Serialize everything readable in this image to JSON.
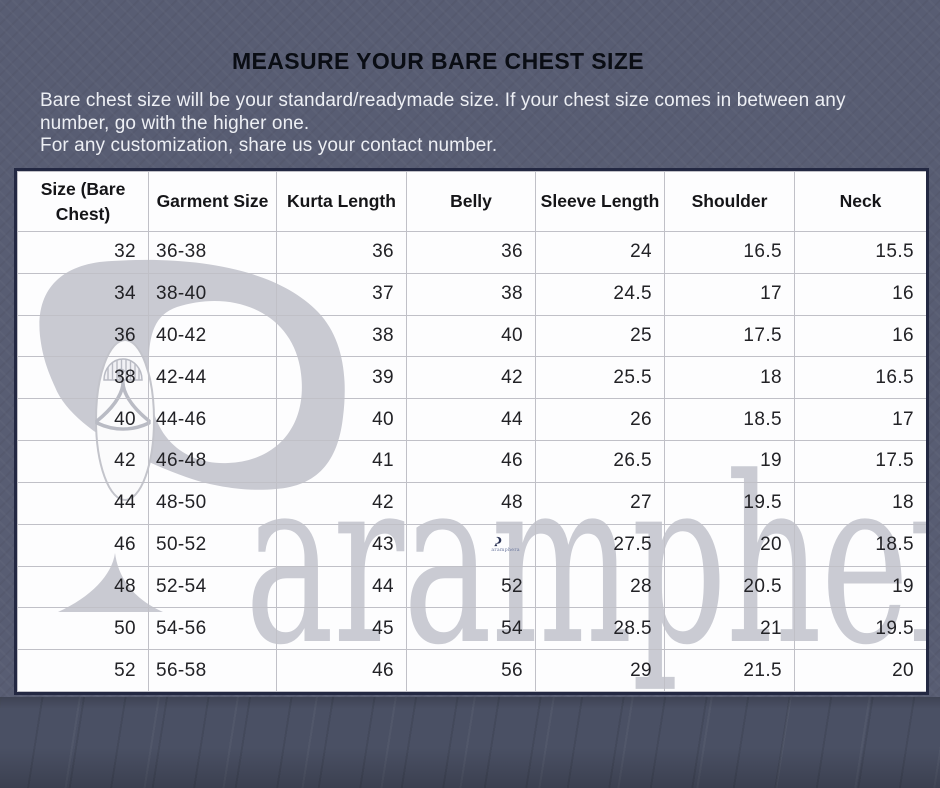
{
  "header": {
    "title": "MEASURE YOUR BARE CHEST SIZE",
    "intro_lines": [
      "Bare chest size will be your standard/readymade size. If your chest size comes in between any",
      "number, go with the higher one.",
      "For any customization, share us your contact number."
    ]
  },
  "chart_data": {
    "type": "table",
    "title": "MEASURE YOUR BARE CHEST SIZE",
    "columns": [
      "Size (Bare Chest)",
      "Garment Size",
      "Kurta Length",
      "Belly",
      "Sleeve Length",
      "Shoulder",
      "Neck"
    ],
    "rows": [
      [
        "32",
        "36-38",
        "36",
        "36",
        "24",
        "16.5",
        "15.5"
      ],
      [
        "34",
        "38-40",
        "37",
        "38",
        "24.5",
        "17",
        "16"
      ],
      [
        "36",
        "40-42",
        "38",
        "40",
        "25",
        "17.5",
        "16"
      ],
      [
        "38",
        "42-44",
        "39",
        "42",
        "25.5",
        "18",
        "16.5"
      ],
      [
        "40",
        "44-46",
        "40",
        "44",
        "26",
        "18.5",
        "17"
      ],
      [
        "42",
        "46-48",
        "41",
        "46",
        "26.5",
        "19",
        "17.5"
      ],
      [
        "44",
        "48-50",
        "42",
        "48",
        "27",
        "19.5",
        "18"
      ],
      [
        "46",
        "50-52",
        "43",
        null,
        "27.5",
        "20",
        "18.5"
      ],
      [
        "48",
        "52-54",
        "44",
        "52",
        "28",
        "20.5",
        "19"
      ],
      [
        "50",
        "54-56",
        "45",
        "54",
        "28.5",
        "21",
        "19.5"
      ],
      [
        "52",
        "56-58",
        "46",
        "56",
        "29",
        "21.5",
        "20"
      ]
    ],
    "note": "null Belly cell (size 46 row) shows a tiny aramphera logo stamp instead of a number"
  },
  "watermark": {
    "brand": "aramphera",
    "mini_stamp_label": "aramphera"
  },
  "colors": {
    "wall": "#585d73",
    "floor": "#4a5064",
    "table_background": "#fdfdfe",
    "table_border": "#232842",
    "cell_border": "#c0c0c7",
    "watermark_gray": "#c9cad2",
    "mini_logo_navy": "#2c3455",
    "title_text": "#0a0d14",
    "intro_text": "#edeff4"
  }
}
